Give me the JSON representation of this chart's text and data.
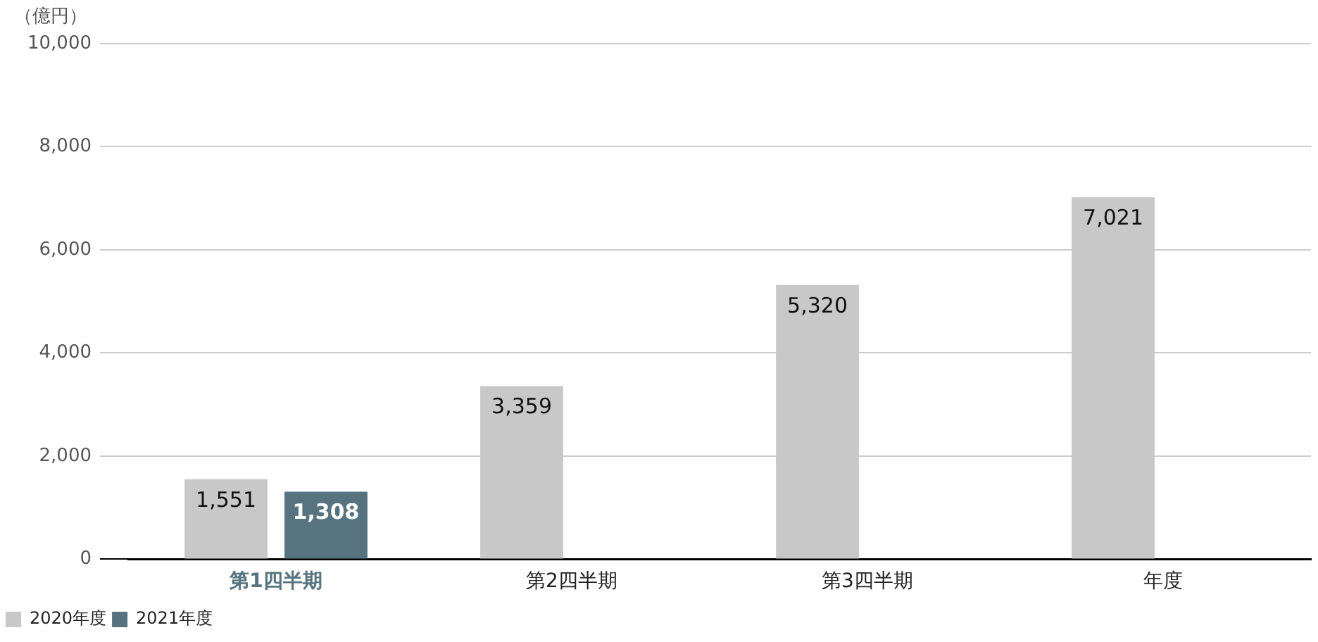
{
  "chart_data": {
    "type": "bar",
    "ylabel": "（億円）",
    "categories": [
      "第1四半期",
      "第2四半期",
      "第3四半期",
      "年度"
    ],
    "series": [
      {
        "name": "2020年度",
        "color": "#c8c8c8",
        "values": [
          1551,
          3359,
          5320,
          7021
        ],
        "value_labels": [
          "1,551",
          "3,359",
          "5,320",
          "7,021"
        ]
      },
      {
        "name": "2021年度",
        "color": "#56737f",
        "values": [
          1308,
          null,
          null,
          null
        ],
        "value_labels": [
          "1,308",
          null,
          null,
          null
        ]
      }
    ],
    "ylim": [
      0,
      10000
    ],
    "yticks": [
      0,
      {
        "value": 2000,
        "label": "2,000"
      },
      {
        "value": 4000,
        "label": "4,000"
      },
      {
        "value": 6000,
        "label": "6,000"
      },
      {
        "value": 8000,
        "label": "8,000"
      },
      {
        "value": 10000,
        "label": "10,000"
      }
    ],
    "grid": "y",
    "legend": "bottom left"
  }
}
